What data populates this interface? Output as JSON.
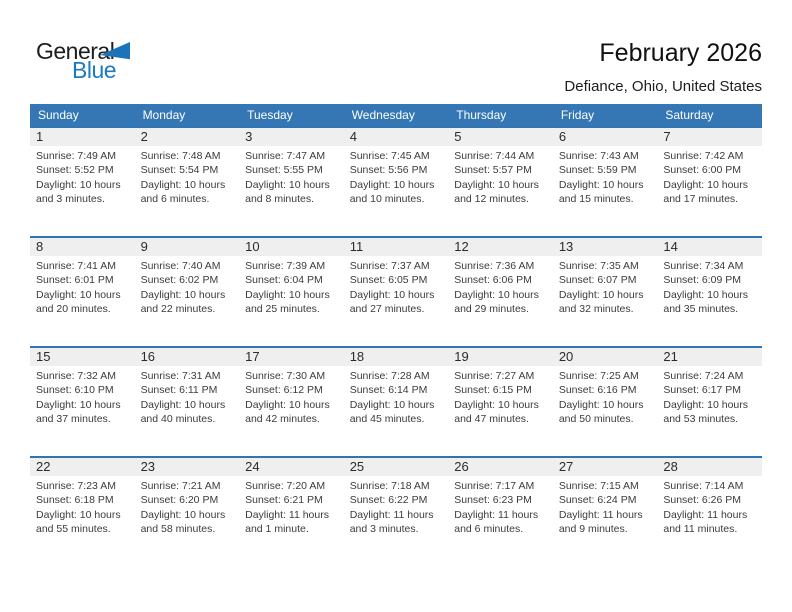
{
  "logo": {
    "part1": "General",
    "part2": "Blue"
  },
  "header": {
    "title": "February 2026",
    "subtitle": "Defiance, Ohio, United States"
  },
  "weekdays": [
    "Sunday",
    "Monday",
    "Tuesday",
    "Wednesday",
    "Thursday",
    "Friday",
    "Saturday"
  ],
  "labels": {
    "sunrise": "Sunrise:",
    "sunset": "Sunset:",
    "daylight": "Daylight:"
  },
  "colors": {
    "header_blue": "#3577b5",
    "separator_blue": "#3174b3",
    "strip_gray": "#efefef",
    "logo_blue": "#1b7ac4"
  },
  "days": [
    {
      "day": "1",
      "sunrise": "7:49 AM",
      "sunset": "5:52 PM",
      "daylight": "10 hours and 3 minutes."
    },
    {
      "day": "2",
      "sunrise": "7:48 AM",
      "sunset": "5:54 PM",
      "daylight": "10 hours and 6 minutes."
    },
    {
      "day": "3",
      "sunrise": "7:47 AM",
      "sunset": "5:55 PM",
      "daylight": "10 hours and 8 minutes."
    },
    {
      "day": "4",
      "sunrise": "7:45 AM",
      "sunset": "5:56 PM",
      "daylight": "10 hours and 10 minutes."
    },
    {
      "day": "5",
      "sunrise": "7:44 AM",
      "sunset": "5:57 PM",
      "daylight": "10 hours and 12 minutes."
    },
    {
      "day": "6",
      "sunrise": "7:43 AM",
      "sunset": "5:59 PM",
      "daylight": "10 hours and 15 minutes."
    },
    {
      "day": "7",
      "sunrise": "7:42 AM",
      "sunset": "6:00 PM",
      "daylight": "10 hours and 17 minutes."
    },
    {
      "day": "8",
      "sunrise": "7:41 AM",
      "sunset": "6:01 PM",
      "daylight": "10 hours and 20 minutes."
    },
    {
      "day": "9",
      "sunrise": "7:40 AM",
      "sunset": "6:02 PM",
      "daylight": "10 hours and 22 minutes."
    },
    {
      "day": "10",
      "sunrise": "7:39 AM",
      "sunset": "6:04 PM",
      "daylight": "10 hours and 25 minutes."
    },
    {
      "day": "11",
      "sunrise": "7:37 AM",
      "sunset": "6:05 PM",
      "daylight": "10 hours and 27 minutes."
    },
    {
      "day": "12",
      "sunrise": "7:36 AM",
      "sunset": "6:06 PM",
      "daylight": "10 hours and 29 minutes."
    },
    {
      "day": "13",
      "sunrise": "7:35 AM",
      "sunset": "6:07 PM",
      "daylight": "10 hours and 32 minutes."
    },
    {
      "day": "14",
      "sunrise": "7:34 AM",
      "sunset": "6:09 PM",
      "daylight": "10 hours and 35 minutes."
    },
    {
      "day": "15",
      "sunrise": "7:32 AM",
      "sunset": "6:10 PM",
      "daylight": "10 hours and 37 minutes."
    },
    {
      "day": "16",
      "sunrise": "7:31 AM",
      "sunset": "6:11 PM",
      "daylight": "10 hours and 40 minutes."
    },
    {
      "day": "17",
      "sunrise": "7:30 AM",
      "sunset": "6:12 PM",
      "daylight": "10 hours and 42 minutes."
    },
    {
      "day": "18",
      "sunrise": "7:28 AM",
      "sunset": "6:14 PM",
      "daylight": "10 hours and 45 minutes."
    },
    {
      "day": "19",
      "sunrise": "7:27 AM",
      "sunset": "6:15 PM",
      "daylight": "10 hours and 47 minutes."
    },
    {
      "day": "20",
      "sunrise": "7:25 AM",
      "sunset": "6:16 PM",
      "daylight": "10 hours and 50 minutes."
    },
    {
      "day": "21",
      "sunrise": "7:24 AM",
      "sunset": "6:17 PM",
      "daylight": "10 hours and 53 minutes."
    },
    {
      "day": "22",
      "sunrise": "7:23 AM",
      "sunset": "6:18 PM",
      "daylight": "10 hours and 55 minutes."
    },
    {
      "day": "23",
      "sunrise": "7:21 AM",
      "sunset": "6:20 PM",
      "daylight": "10 hours and 58 minutes."
    },
    {
      "day": "24",
      "sunrise": "7:20 AM",
      "sunset": "6:21 PM",
      "daylight": "11 hours and 1 minute."
    },
    {
      "day": "25",
      "sunrise": "7:18 AM",
      "sunset": "6:22 PM",
      "daylight": "11 hours and 3 minutes."
    },
    {
      "day": "26",
      "sunrise": "7:17 AM",
      "sunset": "6:23 PM",
      "daylight": "11 hours and 6 minutes."
    },
    {
      "day": "27",
      "sunrise": "7:15 AM",
      "sunset": "6:24 PM",
      "daylight": "11 hours and 9 minutes."
    },
    {
      "day": "28",
      "sunrise": "7:14 AM",
      "sunset": "6:26 PM",
      "daylight": "11 hours and 11 minutes."
    }
  ]
}
